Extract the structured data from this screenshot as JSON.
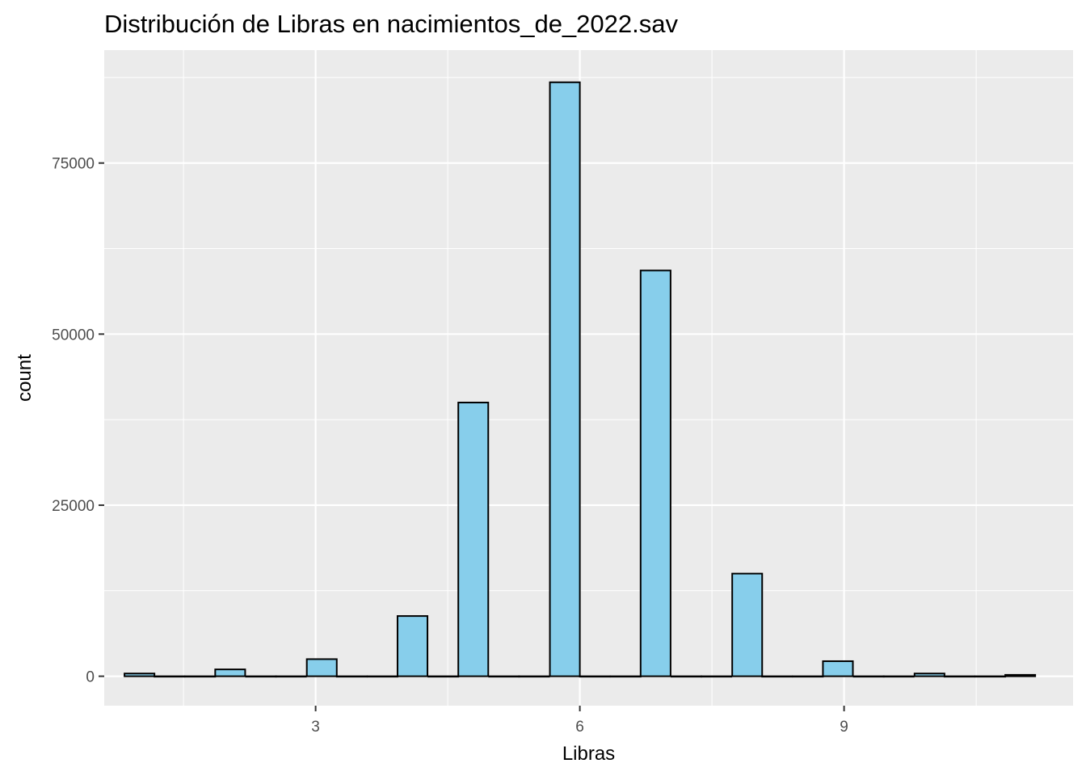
{
  "chart_data": {
    "type": "bar",
    "title": "Distribución de Libras en nacimientos_de_2022.sav",
    "xlabel": "Libras",
    "ylabel": "count",
    "xlim": [
      0.6,
      11.6
    ],
    "ylim": [
      -4300,
      91500
    ],
    "x_ticks": [
      3,
      6,
      9
    ],
    "y_ticks": [
      0,
      25000,
      50000,
      75000
    ],
    "y_tick_labels": [
      "0",
      "25000",
      "50000",
      "75000"
    ],
    "x_tick_labels": [
      "3",
      "6",
      "9"
    ],
    "bin_width": 0.34,
    "x": [
      1.0,
      1.34,
      1.69,
      2.03,
      2.38,
      2.72,
      3.07,
      3.41,
      3.76,
      4.1,
      4.45,
      4.79,
      5.14,
      5.48,
      5.83,
      6.17,
      6.52,
      6.86,
      7.21,
      7.55,
      7.9,
      8.24,
      8.59,
      8.93,
      9.28,
      9.62,
      9.97,
      10.31,
      10.66,
      11.0
    ],
    "values": [
      400,
      0,
      0,
      1000,
      0,
      0,
      2500,
      0,
      0,
      8800,
      0,
      40000,
      0,
      0,
      86800,
      0,
      0,
      59300,
      0,
      0,
      15000,
      0,
      0,
      2200,
      0,
      0,
      400,
      0,
      0,
      200
    ],
    "grid": true,
    "colors": {
      "panel": "#EBEBEB",
      "grid": "#FFFFFF",
      "bar_fill": "#87CEEB",
      "bar_stroke": "#000000"
    }
  }
}
